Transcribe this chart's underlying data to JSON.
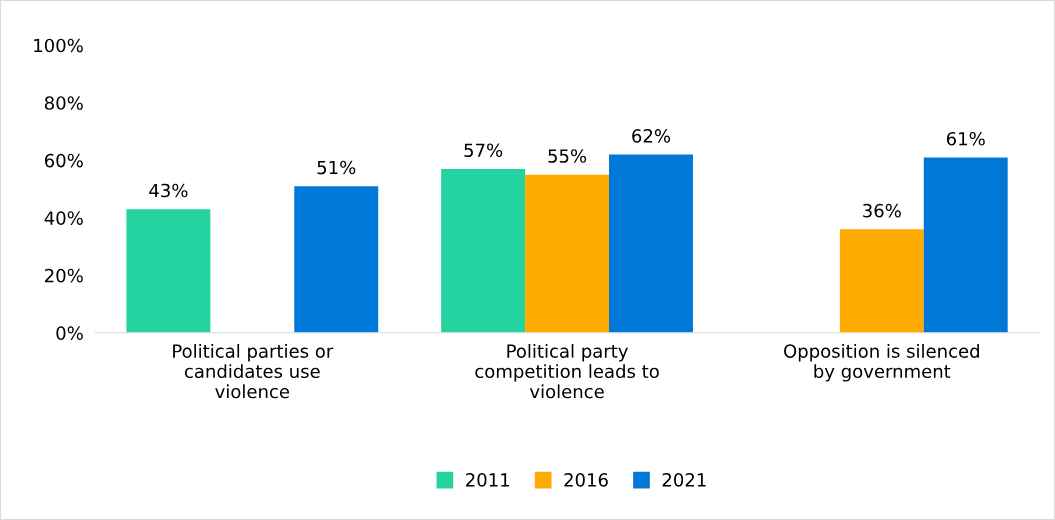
{
  "chart_data": {
    "type": "bar",
    "categories": [
      "Political parties or\ncandidates use\nviolence",
      "Political party\ncompetition leads to\nviolence",
      "Opposition is silenced\nby government"
    ],
    "series": [
      {
        "name": "2011",
        "color": "#24d3a0",
        "values": [
          43,
          57,
          null
        ],
        "value_labels": [
          "43%",
          "57%",
          null
        ]
      },
      {
        "name": "2016",
        "color": "#ffaa00",
        "values": [
          null,
          55,
          36
        ],
        "value_labels": [
          null,
          "55%",
          "36%"
        ]
      },
      {
        "name": "2021",
        "color": "#0078d7",
        "values": [
          51,
          62,
          61
        ],
        "value_labels": [
          "51%",
          "62%",
          "61%"
        ]
      }
    ],
    "ylim": [
      0,
      100
    ],
    "yticks": [
      {
        "value": 0,
        "label": "0%"
      },
      {
        "value": 20,
        "label": "20%"
      },
      {
        "value": 40,
        "label": "40%"
      },
      {
        "value": 60,
        "label": "60%"
      },
      {
        "value": 80,
        "label": "80%"
      },
      {
        "value": 100,
        "label": "100%"
      }
    ],
    "grid": false,
    "legend": "bottom"
  }
}
